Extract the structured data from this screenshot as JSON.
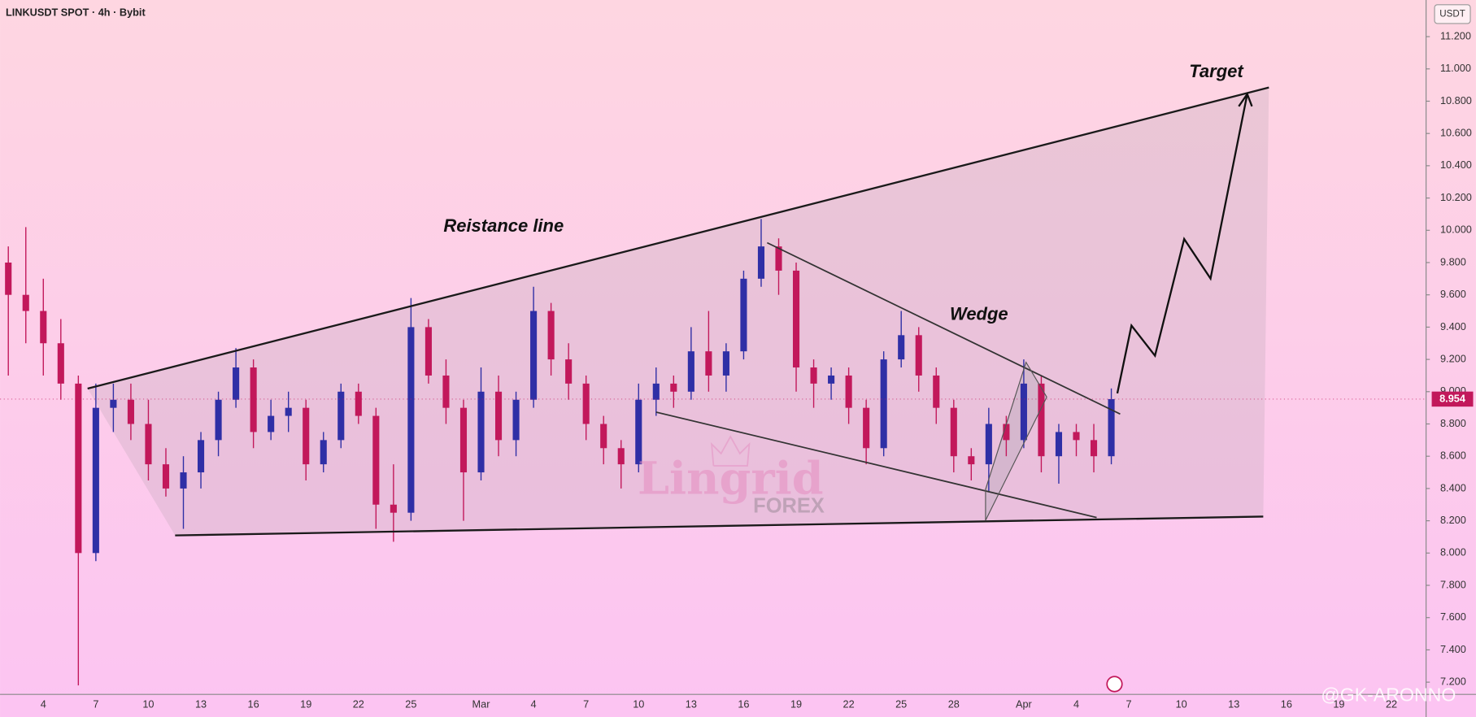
{
  "chart_data": {
    "type": "candlestick",
    "title": "LINKUSDT SPOT · 4h · Bybit",
    "y_axis_label": "USDT",
    "annotations": [
      "Reistance line",
      "Wedge",
      "Target"
    ],
    "watermark": [
      "Lingrid",
      "FOREX"
    ],
    "credit": "@GK-ARONNO",
    "up_color": "#2f2fa6",
    "down_color": "#c2185b",
    "last_price": 8.954,
    "categories": [
      null,
      null,
      "4",
      null,
      null,
      "7",
      null,
      null,
      "10",
      null,
      null,
      "13",
      null,
      null,
      "16",
      null,
      null,
      "19",
      null,
      null,
      "22",
      null,
      null,
      "25",
      null,
      null,
      null,
      "Mar",
      null,
      null,
      "4",
      null,
      null,
      "7",
      null,
      null,
      "10",
      null,
      null,
      "13",
      null,
      null,
      "16",
      null,
      null,
      "19",
      null,
      null,
      "22",
      null,
      null,
      "25",
      null,
      null,
      "28",
      null,
      null,
      null,
      "Apr",
      null,
      null,
      "4",
      null,
      null,
      "7",
      null,
      null,
      "10",
      null,
      null,
      "13",
      null,
      null,
      "16",
      null,
      null,
      "19",
      null,
      null,
      "22",
      null,
      null
    ],
    "open": [
      9.8,
      9.6,
      9.5,
      9.3,
      9.05,
      8.0,
      8.9,
      8.95,
      8.8,
      8.55,
      8.4,
      8.5,
      8.7,
      8.95,
      9.15,
      8.75,
      8.85,
      8.9,
      8.55,
      8.7,
      9.0,
      8.85,
      8.3,
      8.25,
      9.4,
      9.1,
      8.9,
      8.5,
      9.0,
      8.7,
      8.95,
      9.5,
      9.2,
      9.05,
      8.8,
      8.65,
      8.55,
      8.95,
      9.05,
      9.0,
      9.25,
      9.1,
      9.25,
      9.7,
      9.9,
      9.75,
      9.15,
      9.05,
      9.1,
      8.9,
      8.65,
      9.2,
      9.35,
      9.1,
      8.9,
      8.6,
      8.55,
      8.8,
      8.7,
      9.05,
      8.6,
      8.75,
      8.7,
      8.6,
      null,
      null,
      null,
      null,
      null,
      null,
      null,
      null,
      null,
      null,
      null,
      null,
      null,
      null,
      null,
      null,
      null,
      null
    ],
    "high": [
      9.9,
      10.02,
      9.7,
      9.45,
      9.1,
      9.05,
      9.05,
      9.05,
      8.95,
      8.65,
      8.6,
      8.75,
      9.0,
      9.27,
      9.2,
      8.95,
      9.0,
      8.95,
      8.75,
      9.05,
      9.05,
      8.9,
      8.55,
      9.58,
      9.45,
      9.2,
      8.95,
      9.15,
      9.1,
      9.0,
      9.65,
      9.55,
      9.3,
      9.1,
      8.85,
      8.7,
      9.05,
      9.15,
      9.1,
      9.4,
      9.5,
      9.3,
      9.75,
      10.07,
      9.95,
      9.8,
      9.2,
      9.15,
      9.15,
      8.95,
      9.25,
      9.5,
      9.4,
      9.15,
      8.95,
      8.65,
      8.9,
      8.85,
      9.2,
      9.1,
      8.8,
      8.8,
      8.8,
      9.02,
      null,
      null,
      null,
      null,
      null,
      null,
      null,
      null,
      null,
      null,
      null,
      null,
      null,
      null,
      null,
      null,
      null,
      null
    ],
    "low": [
      9.1,
      9.3,
      9.1,
      8.95,
      7.18,
      7.95,
      8.75,
      8.7,
      8.45,
      8.35,
      8.15,
      8.4,
      8.6,
      8.9,
      8.65,
      8.7,
      8.75,
      8.45,
      8.5,
      8.65,
      8.8,
      8.15,
      8.07,
      8.2,
      9.05,
      8.8,
      8.2,
      8.45,
      8.6,
      8.6,
      8.9,
      9.1,
      8.95,
      8.7,
      8.55,
      8.4,
      8.5,
      8.85,
      8.9,
      8.95,
      9.0,
      9.0,
      9.2,
      9.65,
      9.6,
      9.0,
      8.9,
      8.95,
      8.8,
      8.55,
      8.6,
      9.15,
      9.0,
      8.8,
      8.5,
      8.45,
      8.38,
      8.6,
      8.65,
      8.5,
      8.43,
      8.6,
      8.5,
      8.55,
      null,
      null,
      null,
      null,
      null,
      null,
      null,
      null,
      null,
      null,
      null,
      null,
      null,
      null,
      null,
      null,
      null,
      null
    ],
    "close": [
      9.6,
      9.5,
      9.3,
      9.05,
      8.0,
      8.9,
      8.95,
      8.8,
      8.55,
      8.4,
      8.5,
      8.7,
      8.95,
      9.15,
      8.75,
      8.85,
      8.9,
      8.55,
      8.7,
      9.0,
      8.85,
      8.3,
      8.25,
      9.4,
      9.1,
      8.9,
      8.5,
      9.0,
      8.7,
      8.95,
      9.5,
      9.2,
      9.05,
      8.8,
      8.65,
      8.55,
      8.95,
      9.05,
      9.0,
      9.25,
      9.1,
      9.25,
      9.7,
      9.9,
      9.75,
      9.15,
      9.05,
      9.1,
      8.9,
      8.65,
      9.2,
      9.35,
      9.1,
      8.9,
      8.6,
      8.55,
      8.8,
      8.7,
      9.05,
      8.6,
      8.75,
      8.7,
      8.6,
      8.954,
      null,
      null,
      null,
      null,
      null,
      null,
      null,
      null,
      null,
      null,
      null,
      null,
      null,
      null,
      null,
      null,
      null,
      null
    ],
    "ylim": [
      7.124,
      11.427
    ],
    "yticks": [
      {
        "value": 7.2,
        "label": "7.200"
      },
      {
        "value": 7.4,
        "label": "7.400"
      },
      {
        "value": 7.6,
        "label": "7.600"
      },
      {
        "value": 7.8,
        "label": "7.800"
      },
      {
        "value": 8.0,
        "label": "8.000"
      },
      {
        "value": 8.2,
        "label": "8.200"
      },
      {
        "value": 8.4,
        "label": "8.400"
      },
      {
        "value": 8.6,
        "label": "8.600"
      },
      {
        "value": 8.8,
        "label": "8.800"
      },
      {
        "value": 9.0,
        "label": "9.000"
      },
      {
        "value": 9.2,
        "label": "9.200"
      },
      {
        "value": 9.4,
        "label": "9.400"
      },
      {
        "value": 9.6,
        "label": "9.600"
      },
      {
        "value": 9.8,
        "label": "9.800"
      },
      {
        "value": 10.0,
        "label": "10.000"
      },
      {
        "value": 10.2,
        "label": "10.200"
      },
      {
        "value": 10.4,
        "label": "10.400"
      },
      {
        "value": 10.6,
        "label": "10.600"
      },
      {
        "value": 10.8,
        "label": "10.800"
      },
      {
        "value": 11.0,
        "label": "11.000"
      },
      {
        "value": 11.2,
        "label": "11.200"
      }
    ]
  }
}
